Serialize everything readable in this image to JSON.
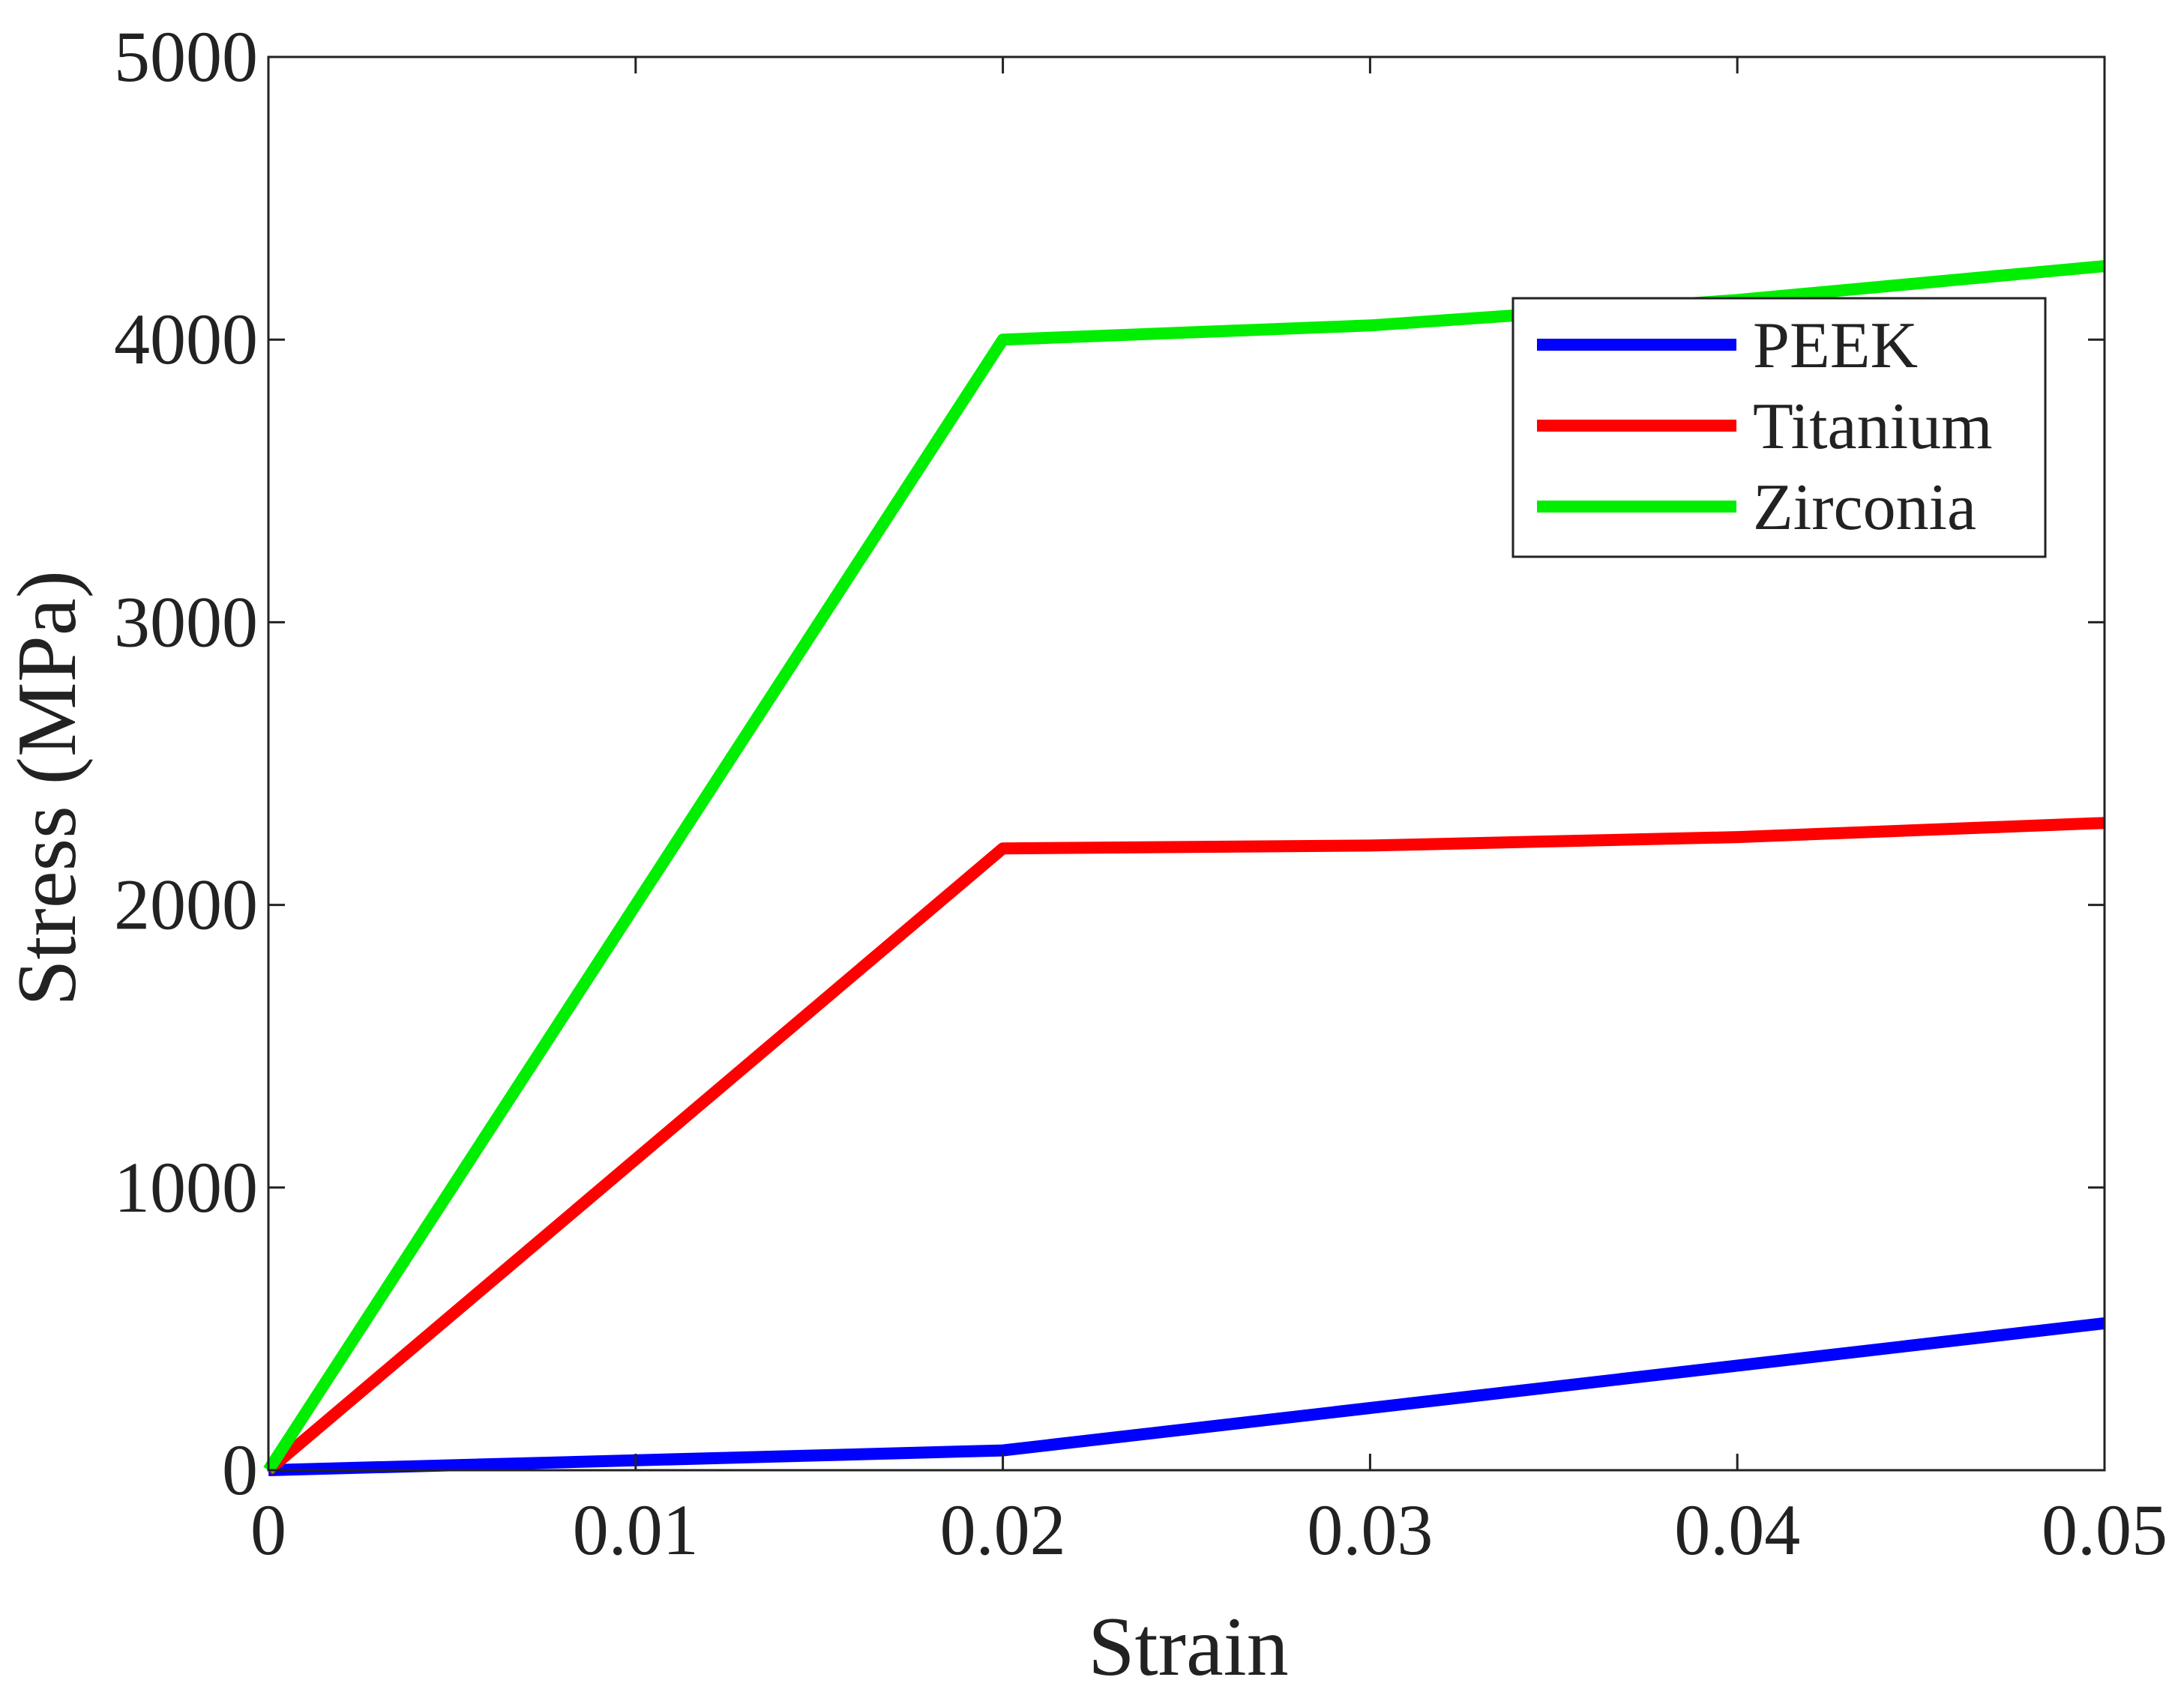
{
  "chart_data": {
    "type": "line",
    "title": "",
    "xlabel": "Strain",
    "ylabel": "Stress (MPa)",
    "xlim": [
      0,
      0.05
    ],
    "ylim": [
      0,
      5000
    ],
    "x_ticks": [
      0,
      0.01,
      0.02,
      0.03,
      0.04,
      0.05
    ],
    "x_tick_labels": [
      "0",
      "0.01",
      "0.02",
      "0.03",
      "0.04",
      "0.05"
    ],
    "y_ticks": [
      0,
      1000,
      2000,
      3000,
      4000,
      5000
    ],
    "y_tick_labels": [
      "0",
      "1000",
      "2000",
      "3000",
      "4000",
      "5000"
    ],
    "grid": false,
    "legend_position": "top-right",
    "series": [
      {
        "name": "PEEK",
        "color": "#0000ff",
        "x": [
          0,
          0.02,
          0.05
        ],
        "y": [
          0,
          70,
          520
        ]
      },
      {
        "name": "Titanium",
        "color": "#ff0000",
        "x": [
          0,
          0.02,
          0.03,
          0.04,
          0.05
        ],
        "y": [
          0,
          2200,
          2210,
          2240,
          2290
        ]
      },
      {
        "name": "Zirconia",
        "color": "#00ee00",
        "x": [
          0,
          0.02,
          0.03,
          0.04,
          0.05
        ],
        "y": [
          0,
          4000,
          4050,
          4140,
          4260
        ]
      }
    ]
  }
}
